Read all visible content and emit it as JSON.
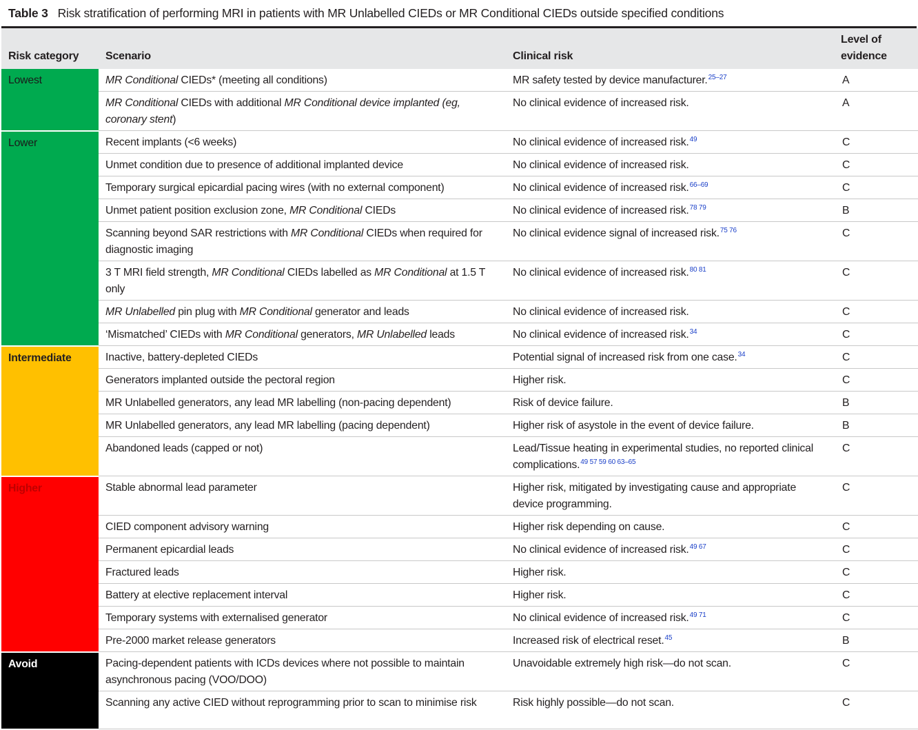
{
  "caption": {
    "label": "Table 3",
    "title": "Risk stratification of performing MRI in patients with MR Unlabelled CIEDs or MR Conditional CIEDs outside specified conditions"
  },
  "headers": [
    "Risk category",
    "Scenario",
    "Clinical risk",
    "Level of evidence"
  ],
  "categories": {
    "lowest": "Lowest",
    "lower": "Lower",
    "intermediate": "Intermediate",
    "higher": "Higher",
    "avoid": "Avoid"
  },
  "colors": {
    "lowest": "#00aa4f",
    "lower": "#00aa4f",
    "intermediate": "#ffc000",
    "higher": "#ff0000",
    "avoid": "#000000",
    "header_bg": "#e6e7e8",
    "reference_link": "#1a3fc8"
  },
  "rows": [
    {
      "s_it": "MR Conditional",
      "s": " CIEDs* (meeting all conditions)",
      "r": "MR safety tested by device manufacturer.",
      "ref": "25–27",
      "lvl": "A"
    },
    {
      "s_it": "MR Conditional",
      "s": " CIEDs with additional ",
      "s_it2": "MR Conditional device implanted (eg, coronary stent",
      "s_end": ")",
      "r": "No clinical evidence of increased risk.",
      "ref": "",
      "lvl": "A"
    },
    {
      "s": "Recent implants (<6 weeks)",
      "r": "No clinical evidence of increased risk.",
      "ref": "49",
      "lvl": "C"
    },
    {
      "s": "Unmet condition due to presence of additional implanted device",
      "r": "No clinical evidence of increased risk.",
      "ref": "",
      "lvl": "C"
    },
    {
      "s": "Temporary surgical epicardial pacing wires (with no external component)",
      "r": "No clinical evidence of increased risk.",
      "ref": "66–69",
      "lvl": "C"
    },
    {
      "s": "Unmet patient position exclusion zone, ",
      "s_it2": "MR Conditional",
      "s_end": " CIEDs",
      "r": "No clinical evidence of increased risk.",
      "ref": "78 79",
      "lvl": "B"
    },
    {
      "s": "Scanning beyond SAR restrictions with ",
      "s_it2": "MR Conditional",
      "s_end": " CIEDs when required for diagnostic imaging",
      "r": "No clinical evidence signal of increased risk.",
      "ref": "75 76",
      "lvl": "C"
    },
    {
      "s": "3 T MRI field strength, ",
      "s_it2": "MR Conditional",
      "s_mid": " CIEDs labelled as ",
      "s_it3": "MR Conditional",
      "s_end": " at 1.5 T only",
      "r": "No clinical evidence of increased risk.",
      "ref": "80 81",
      "lvl": "C"
    },
    {
      "s_it": "MR Unlabelled",
      "s": " pin plug with ",
      "s_it2": "MR Conditional",
      "s_end": " generator and leads",
      "r": "No clinical evidence of increased risk.",
      "ref": "",
      "lvl": "C"
    },
    {
      "s": "‘Mismatched’ CIEDs with ",
      "s_it2": "MR Conditional",
      "s_mid": " generators, ",
      "s_it3": "MR Unlabelled",
      "s_end": " leads",
      "r": "No clinical evidence of increased risk.",
      "ref": "34",
      "lvl": "C"
    },
    {
      "s": "Inactive, battery-depleted CIEDs",
      "r": "Potential signal of increased risk from one case.",
      "ref": "34",
      "lvl": "C"
    },
    {
      "s": "Generators implanted outside the pectoral region",
      "r": "Higher risk.",
      "ref": "",
      "lvl": "C"
    },
    {
      "s": "MR Unlabelled generators, any lead MR labelling (non-pacing dependent)",
      "r": "Risk of device failure.",
      "ref": "",
      "lvl": "B"
    },
    {
      "s": "MR Unlabelled generators, any lead MR labelling (pacing dependent)",
      "r": "Higher risk of asystole in the event of device failure.",
      "ref": "",
      "lvl": "B"
    },
    {
      "s": "Abandoned leads (capped or not)",
      "r": "Lead/Tissue heating in experimental studies, no reported clinical complications.",
      "ref": "49 57 59 60 63–65",
      "lvl": "C"
    },
    {
      "s": "Stable abnormal lead parameter",
      "r": "Higher risk, mitigated by investigating cause and appropriate device programming.",
      "ref": "",
      "lvl": "C"
    },
    {
      "s": "CIED component advisory warning",
      "r": "Higher risk depending on cause.",
      "ref": "",
      "lvl": "C"
    },
    {
      "s": "Permanent epicardial leads",
      "r": "No clinical evidence of increased risk.",
      "ref": "49 67",
      "lvl": "C"
    },
    {
      "s": "Fractured leads",
      "r": "Higher risk.",
      "ref": "",
      "lvl": "C"
    },
    {
      "s": "Battery at elective replacement interval",
      "r": "Higher risk.",
      "ref": "",
      "lvl": "C"
    },
    {
      "s": "Temporary systems with externalised generator",
      "r": "No clinical evidence of increased risk.",
      "ref": "49 71",
      "lvl": "C"
    },
    {
      "s": "Pre-2000 market release generators",
      "r": "Increased risk of electrical reset.",
      "ref": "45",
      "lvl": "B"
    },
    {
      "s": "Pacing-dependent patients with ICDs devices where not possible to maintain asynchronous pacing (VOO/DOO)",
      "r": "Unavoidable extremely high risk—do not scan.",
      "ref": "",
      "lvl": "C"
    },
    {
      "s": "Scanning any active CIED without reprogramming prior to scan to minimise risk",
      "r": "Risk highly possible—do not scan.",
      "ref": "",
      "lvl": "C"
    }
  ]
}
